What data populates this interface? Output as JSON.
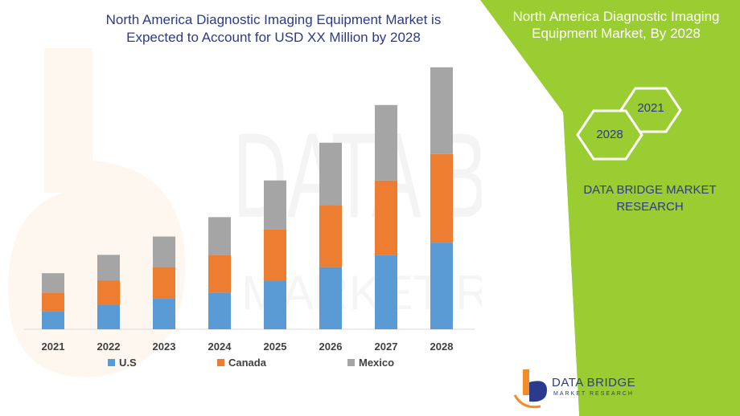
{
  "left_title_line1": "North America Diagnostic Imaging Equipment Market is",
  "left_title_line2": "Expected to Account for USD XX Million by 2028",
  "right_title_line1": "North America Diagnostic Imaging",
  "right_title_line2": "Equipment Market, By 2028",
  "hex_top_label": "2021",
  "hex_bottom_label": "2028",
  "brand_line1": "DATA BRIDGE MARKET",
  "brand_line2": "RESEARCH",
  "logo_main": "DATA BRIDGE",
  "logo_sub": "MARKET RESEARCH",
  "watermark_main": "DATA BRIDGE",
  "watermark_sub": "MARKET RESEARCH",
  "colors": {
    "us": "#5b9bd5",
    "canada": "#ed7d31",
    "mexico": "#a5a5a5",
    "green": "#9acd32",
    "navy": "#2b3a8c",
    "orange_logo": "#f28c28"
  },
  "chart_data": {
    "type": "bar",
    "stacked": true,
    "title": "North America Diagnostic Imaging Equipment Market is Expected to Account for USD XX Million by 2028",
    "categories": [
      "2021",
      "2022",
      "2023",
      "2024",
      "2025",
      "2026",
      "2027",
      "2028"
    ],
    "series": [
      {
        "name": "U.S",
        "color": "#5b9bd5",
        "values": [
          18,
          24,
          30,
          36,
          48,
          61,
          73,
          85
        ]
      },
      {
        "name": "Canada",
        "color": "#ed7d31",
        "values": [
          18,
          24,
          31,
          37,
          50,
          61,
          73,
          87
        ]
      },
      {
        "name": "Mexico",
        "color": "#a5a5a5",
        "values": [
          19,
          25,
          30,
          37,
          48,
          61,
          74,
          85
        ]
      }
    ],
    "legend_position": "bottom",
    "grid": false,
    "ylim": [
      0,
      260
    ],
    "y_axis_shown": false
  }
}
